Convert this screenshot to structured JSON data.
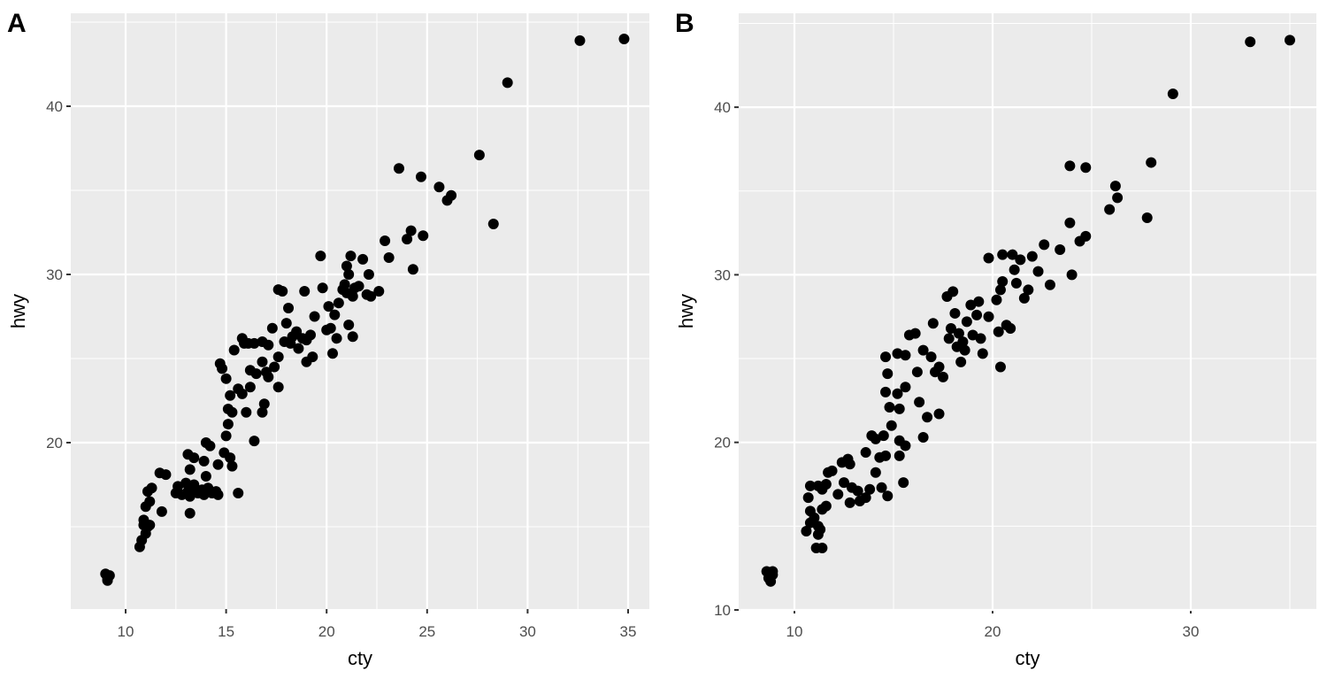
{
  "chart_data": [
    {
      "panel": "A",
      "type": "scatter",
      "title": "",
      "xlabel": "cty",
      "ylabel": "hwy",
      "x_ticks": [
        10,
        15,
        20,
        25,
        30,
        35
      ],
      "y_ticks": [
        20,
        30,
        40
      ],
      "xlim": [
        8.3,
        36.1
      ],
      "ylim": [
        10.4,
        45.8
      ],
      "grid": true,
      "points": [
        [
          9,
          12.2
        ],
        [
          9.1,
          11.9
        ],
        [
          9.2,
          12.1
        ],
        [
          9.1,
          11.8
        ],
        [
          10.7,
          13.8
        ],
        [
          10.8,
          14.2
        ],
        [
          10.9,
          15.1
        ],
        [
          11,
          14.6
        ],
        [
          10.9,
          15.4
        ],
        [
          11.1,
          15.0
        ],
        [
          11.2,
          15.1
        ],
        [
          11.0,
          16.2
        ],
        [
          11.2,
          16.5
        ],
        [
          11.1,
          17.1
        ],
        [
          11.3,
          17.3
        ],
        [
          11.8,
          15.9
        ],
        [
          11.7,
          18.2
        ],
        [
          12.0,
          18.1
        ],
        [
          12.5,
          17.0
        ],
        [
          12.6,
          17.4
        ],
        [
          12.8,
          16.9
        ],
        [
          13.0,
          17.6
        ],
        [
          13.1,
          17.1
        ],
        [
          13.2,
          16.8
        ],
        [
          13.3,
          17.2
        ],
        [
          13.4,
          17.5
        ],
        [
          13.6,
          17.0
        ],
        [
          13.8,
          17.2
        ],
        [
          13.9,
          16.9
        ],
        [
          14.1,
          17.3
        ],
        [
          14.3,
          17.0
        ],
        [
          14.5,
          17.1
        ],
        [
          14.0,
          18.0
        ],
        [
          13.2,
          18.4
        ],
        [
          13.2,
          15.8
        ],
        [
          13.1,
          19.3
        ],
        [
          13.4,
          19.1
        ],
        [
          13.9,
          18.9
        ],
        [
          14.0,
          20.0
        ],
        [
          14.2,
          19.8
        ],
        [
          14.6,
          18.7
        ],
        [
          14.9,
          19.4
        ],
        [
          14.6,
          16.9
        ],
        [
          15.0,
          20.4
        ],
        [
          15.2,
          19.1
        ],
        [
          15.1,
          21.1
        ],
        [
          15.3,
          18.6
        ],
        [
          15.6,
          17.0
        ],
        [
          14.7,
          24.7
        ],
        [
          14.8,
          24.4
        ],
        [
          15.0,
          23.8
        ],
        [
          15.2,
          22.8
        ],
        [
          15.1,
          22.0
        ],
        [
          15.3,
          21.8
        ],
        [
          15.6,
          23.2
        ],
        [
          15.4,
          25.5
        ],
        [
          15.8,
          26.2
        ],
        [
          15.9,
          25.9
        ],
        [
          16.1,
          25.9
        ],
        [
          16.4,
          25.9
        ],
        [
          16.8,
          26.0
        ],
        [
          17.1,
          25.8
        ],
        [
          15.8,
          22.9
        ],
        [
          16.2,
          23.3
        ],
        [
          16.0,
          21.8
        ],
        [
          16.4,
          20.1
        ],
        [
          16.9,
          22.3
        ],
        [
          16.8,
          21.8
        ],
        [
          16.2,
          24.3
        ],
        [
          16.8,
          24.8
        ],
        [
          17.0,
          24.2
        ],
        [
          17.4,
          24.5
        ],
        [
          17.6,
          23.3
        ],
        [
          17.3,
          26.8
        ],
        [
          17.6,
          25.1
        ],
        [
          17.1,
          23.9
        ],
        [
          16.5,
          24.1
        ],
        [
          17.6,
          29.1
        ],
        [
          17.8,
          29.0
        ],
        [
          17.9,
          26.0
        ],
        [
          18.0,
          27.1
        ],
        [
          18.1,
          28.0
        ],
        [
          18.3,
          26.3
        ],
        [
          18.5,
          26.6
        ],
        [
          18.2,
          25.9
        ],
        [
          18.8,
          26.2
        ],
        [
          18.6,
          25.6
        ],
        [
          19.0,
          26.1
        ],
        [
          19.2,
          26.4
        ],
        [
          19.0,
          24.8
        ],
        [
          19.3,
          25.1
        ],
        [
          18.9,
          29.0
        ],
        [
          19.4,
          27.5
        ],
        [
          19.7,
          31.1
        ],
        [
          19.8,
          29.2
        ],
        [
          20.0,
          26.7
        ],
        [
          20.2,
          26.8
        ],
        [
          20.4,
          27.6
        ],
        [
          20.1,
          28.1
        ],
        [
          20.3,
          25.3
        ],
        [
          20.6,
          28.3
        ],
        [
          20.5,
          26.2
        ],
        [
          20.8,
          29.1
        ],
        [
          20.9,
          29.4
        ],
        [
          21.0,
          28.9
        ],
        [
          21.1,
          30.0
        ],
        [
          21.0,
          30.5
        ],
        [
          21.2,
          31.1
        ],
        [
          21.4,
          29.2
        ],
        [
          21.3,
          28.7
        ],
        [
          21.6,
          29.3
        ],
        [
          21.8,
          30.9
        ],
        [
          21.1,
          27.0
        ],
        [
          21.3,
          26.3
        ],
        [
          22.0,
          28.8
        ],
        [
          22.2,
          28.7
        ],
        [
          22.1,
          30.0
        ],
        [
          22.6,
          29.0
        ],
        [
          22.9,
          32.0
        ],
        [
          23.1,
          31.0
        ],
        [
          23.6,
          36.3
        ],
        [
          24.0,
          32.1
        ],
        [
          24.2,
          32.6
        ],
        [
          24.3,
          30.3
        ],
        [
          24.7,
          35.8
        ],
        [
          24.8,
          32.3
        ],
        [
          25.6,
          35.2
        ],
        [
          26.0,
          34.4
        ],
        [
          26.2,
          34.7
        ],
        [
          27.6,
          37.1
        ],
        [
          28.3,
          33.0
        ],
        [
          29.0,
          41.4
        ],
        [
          32.6,
          43.9
        ],
        [
          34.8,
          44.0
        ]
      ]
    },
    {
      "panel": "B",
      "type": "scatter",
      "title": "",
      "xlabel": "cty",
      "ylabel": "hwy",
      "x_ticks": [
        10,
        20,
        30
      ],
      "y_ticks": [
        10,
        20,
        30,
        40
      ],
      "xlim": [
        7.6,
        36.5
      ],
      "ylim": [
        10,
        45.6
      ],
      "grid": true,
      "points": [
        [
          8.6,
          12.3
        ],
        [
          8.8,
          11.7
        ],
        [
          8.9,
          12.3
        ],
        [
          8.9,
          12.1
        ],
        [
          8.7,
          11.9
        ],
        [
          10.6,
          14.7
        ],
        [
          10.8,
          15.2
        ],
        [
          10.8,
          15.9
        ],
        [
          10.7,
          16.7
        ],
        [
          10.8,
          17.4
        ],
        [
          11.0,
          15.5
        ],
        [
          11.2,
          14.5
        ],
        [
          11.2,
          15.0
        ],
        [
          11.3,
          14.8
        ],
        [
          11.1,
          13.7
        ],
        [
          11.4,
          13.7
        ],
        [
          11.4,
          16.0
        ],
        [
          11.2,
          17.4
        ],
        [
          11.6,
          17.5
        ],
        [
          11.4,
          17.2
        ],
        [
          11.7,
          18.2
        ],
        [
          11.9,
          18.3
        ],
        [
          11.6,
          16.2
        ],
        [
          12.2,
          16.9
        ],
        [
          12.4,
          18.8
        ],
        [
          12.7,
          19.0
        ],
        [
          12.8,
          18.7
        ],
        [
          12.5,
          17.6
        ],
        [
          12.8,
          16.4
        ],
        [
          12.9,
          17.3
        ],
        [
          13.2,
          17.1
        ],
        [
          13.3,
          16.5
        ],
        [
          13.6,
          16.7
        ],
        [
          13.8,
          17.2
        ],
        [
          13.6,
          19.4
        ],
        [
          13.9,
          20.4
        ],
        [
          14.1,
          20.2
        ],
        [
          14.3,
          19.1
        ],
        [
          14.6,
          19.2
        ],
        [
          14.1,
          18.2
        ],
        [
          14.4,
          17.3
        ],
        [
          14.7,
          16.8
        ],
        [
          14.5,
          20.4
        ],
        [
          14.9,
          21.0
        ],
        [
          14.8,
          22.1
        ],
        [
          15.3,
          20.1
        ],
        [
          15.5,
          17.6
        ],
        [
          15.3,
          19.2
        ],
        [
          15.6,
          19.8
        ],
        [
          14.6,
          23.0
        ],
        [
          14.7,
          24.1
        ],
        [
          14.6,
          25.1
        ],
        [
          15.3,
          22.0
        ],
        [
          15.2,
          22.9
        ],
        [
          15.2,
          25.3
        ],
        [
          15.6,
          23.3
        ],
        [
          15.6,
          25.2
        ],
        [
          15.8,
          26.4
        ],
        [
          16.2,
          24.2
        ],
        [
          16.3,
          22.4
        ],
        [
          16.5,
          20.3
        ],
        [
          16.7,
          21.5
        ],
        [
          16.1,
          26.5
        ],
        [
          16.5,
          25.5
        ],
        [
          16.9,
          25.1
        ],
        [
          17.1,
          24.2
        ],
        [
          17.3,
          21.7
        ],
        [
          17.5,
          23.9
        ],
        [
          17.0,
          27.1
        ],
        [
          17.3,
          24.5
        ],
        [
          17.7,
          28.7
        ],
        [
          17.8,
          26.2
        ],
        [
          17.9,
          26.8
        ],
        [
          18.0,
          29.0
        ],
        [
          18.1,
          27.7
        ],
        [
          18.2,
          25.7
        ],
        [
          18.3,
          26.5
        ],
        [
          18.4,
          24.8
        ],
        [
          18.5,
          26.0
        ],
        [
          18.6,
          25.5
        ],
        [
          18.9,
          28.2
        ],
        [
          18.7,
          27.2
        ],
        [
          19.0,
          26.4
        ],
        [
          19.2,
          27.6
        ],
        [
          19.3,
          28.4
        ],
        [
          19.4,
          26.2
        ],
        [
          19.5,
          25.3
        ],
        [
          19.8,
          27.5
        ],
        [
          19.8,
          31.0
        ],
        [
          20.2,
          28.5
        ],
        [
          20.3,
          26.6
        ],
        [
          20.4,
          24.5
        ],
        [
          20.4,
          29.1
        ],
        [
          20.5,
          29.6
        ],
        [
          20.7,
          27.0
        ],
        [
          20.9,
          26.8
        ],
        [
          21.1,
          30.3
        ],
        [
          20.5,
          31.2
        ],
        [
          21.0,
          31.2
        ],
        [
          21.4,
          30.9
        ],
        [
          21.2,
          29.5
        ],
        [
          21.6,
          28.6
        ],
        [
          21.8,
          29.1
        ],
        [
          22.0,
          31.1
        ],
        [
          22.3,
          30.2
        ],
        [
          22.6,
          31.8
        ],
        [
          22.9,
          29.4
        ],
        [
          23.4,
          31.5
        ],
        [
          23.9,
          33.1
        ],
        [
          24.0,
          30.0
        ],
        [
          24.4,
          32.0
        ],
        [
          24.7,
          32.3
        ],
        [
          23.9,
          36.5
        ],
        [
          24.7,
          36.4
        ],
        [
          25.9,
          33.9
        ],
        [
          26.2,
          35.3
        ],
        [
          26.3,
          34.6
        ],
        [
          27.8,
          33.4
        ],
        [
          28.0,
          36.7
        ],
        [
          29.1,
          40.8
        ],
        [
          33.0,
          43.9
        ],
        [
          35.0,
          44.0
        ]
      ]
    }
  ],
  "panels": {
    "a": {
      "tag": "A",
      "xlabel": "cty",
      "ylabel": "hwy",
      "x_ticks": [
        "10",
        "15",
        "20",
        "25",
        "30",
        "35"
      ],
      "y_ticks": [
        "20",
        "30",
        "40"
      ]
    },
    "b": {
      "tag": "B",
      "xlabel": "cty",
      "ylabel": "hwy",
      "x_ticks": [
        "10",
        "20",
        "30"
      ],
      "y_ticks": [
        "10",
        "20",
        "30",
        "40"
      ]
    }
  },
  "colors": {
    "panel_bg": "#ebebeb",
    "grid": "#ffffff",
    "point": "#000000",
    "tick_text": "#4d4d4d"
  }
}
